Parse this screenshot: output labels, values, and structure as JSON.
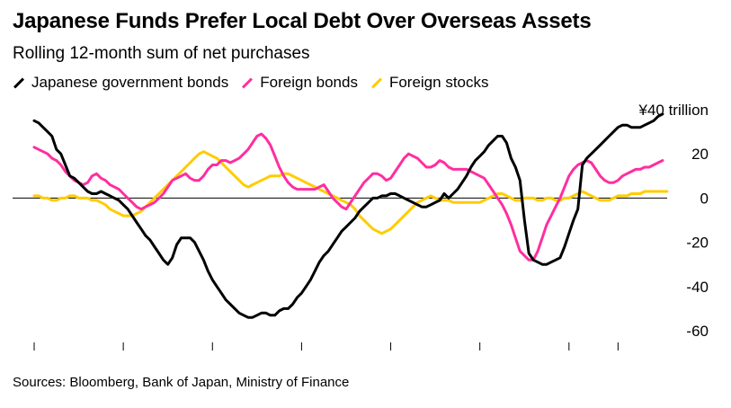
{
  "chart_data": {
    "type": "line",
    "title": "Japanese Funds Prefer Local Debt Over Overseas Assets",
    "subtitle": "Rolling 12-month sum of net purchases",
    "source": "Sources: Bloomberg, Bank of Japan, Ministry of Finance",
    "ylabel": "",
    "y_unit_label": "¥40 trillion",
    "ylim": [
      -60,
      40
    ],
    "y_ticks": [
      "¥40 trillion",
      "20",
      "0",
      "-20",
      "-40",
      "-60"
    ],
    "xlim": [
      0,
      139
    ],
    "x_ticks": [
      0,
      20,
      40,
      60,
      80,
      100,
      120,
      131
    ],
    "zero_line": true,
    "legend_position": "top-left",
    "series": [
      {
        "name": "Japanese government bonds",
        "color": "#000000",
        "values": [
          35,
          34,
          32,
          30,
          28,
          22,
          20,
          15,
          10,
          9,
          7,
          5,
          3,
          2,
          2,
          3,
          2,
          1,
          0,
          -1,
          -3,
          -5,
          -8,
          -11,
          -14,
          -17,
          -19,
          -22,
          -25,
          -28,
          -30,
          -27,
          -21,
          -18,
          -18,
          -18,
          -20,
          -24,
          -28,
          -33,
          -37,
          -40,
          -43,
          -46,
          -48,
          -50,
          -52,
          -53,
          -54,
          -54,
          -53,
          -52,
          -52,
          -53,
          -53,
          -51,
          -50,
          -50,
          -48,
          -45,
          -43,
          -40,
          -37,
          -33,
          -29,
          -26,
          -24,
          -21,
          -18,
          -15,
          -13,
          -11,
          -9,
          -6,
          -4,
          -2,
          0,
          0,
          1,
          1,
          2,
          2,
          1,
          0,
          -1,
          -2,
          -3,
          -4,
          -4,
          -3,
          -2,
          -1,
          2,
          0,
          2,
          4,
          7,
          10,
          14,
          17,
          19,
          21,
          24,
          26,
          28,
          28,
          25,
          18,
          14,
          8,
          -10,
          -25,
          -28,
          -29,
          -30,
          -30,
          -29,
          -28,
          -27,
          -22,
          -16,
          -10,
          -5,
          15,
          18,
          20,
          22,
          24,
          26,
          28,
          30,
          32,
          33,
          33,
          32,
          32,
          32,
          33,
          34,
          35,
          37,
          38
        ]
      },
      {
        "name": "Foreign bonds",
        "color": "#ff2ea0",
        "values": [
          23,
          22,
          21,
          20,
          18,
          17,
          15,
          12,
          10,
          8,
          7,
          6,
          7,
          10,
          11,
          9,
          8,
          6,
          5,
          4,
          2,
          0,
          -2,
          -4,
          -5,
          -4,
          -3,
          -2,
          0,
          2,
          5,
          8,
          9,
          10,
          11,
          9,
          8,
          8,
          10,
          13,
          15,
          15,
          17,
          17,
          16,
          17,
          18,
          20,
          22,
          25,
          28,
          29,
          27,
          24,
          19,
          14,
          10,
          7,
          5,
          4,
          4,
          4,
          4,
          4,
          5,
          6,
          3,
          0,
          -2,
          -4,
          -5,
          -2,
          1,
          4,
          7,
          9,
          11,
          11,
          10,
          8,
          9,
          12,
          15,
          18,
          20,
          19,
          18,
          16,
          14,
          14,
          15,
          17,
          16,
          14,
          13,
          13,
          13,
          13,
          12,
          11,
          10,
          9,
          6,
          3,
          0,
          -3,
          -7,
          -12,
          -18,
          -24,
          -26,
          -28,
          -28,
          -24,
          -18,
          -12,
          -8,
          -4,
          0,
          5,
          10,
          13,
          15,
          16,
          17,
          16,
          13,
          10,
          8,
          7,
          7,
          8,
          10,
          11,
          12,
          13,
          13,
          14,
          14,
          15,
          16,
          17
        ]
      },
      {
        "name": "Foreign stocks",
        "color": "#ffcc00",
        "values": [
          1,
          1,
          0,
          0,
          -1,
          -1,
          0,
          0,
          1,
          1,
          0,
          0,
          0,
          -1,
          -1,
          -2,
          -3,
          -5,
          -6,
          -7,
          -8,
          -8,
          -8,
          -7,
          -6,
          -4,
          -2,
          0,
          2,
          4,
          6,
          8,
          10,
          12,
          14,
          16,
          18,
          20,
          21,
          20,
          19,
          18,
          16,
          14,
          12,
          10,
          8,
          6,
          5,
          6,
          7,
          8,
          9,
          10,
          10,
          10,
          11,
          11,
          10,
          9,
          8,
          7,
          6,
          5,
          4,
          3,
          2,
          1,
          0,
          -1,
          -2,
          -3,
          -5,
          -8,
          -10,
          -12,
          -14,
          -15,
          -16,
          -15,
          -14,
          -12,
          -10,
          -8,
          -6,
          -4,
          -2,
          -1,
          0,
          1,
          0,
          -1,
          -1,
          -1,
          -2,
          -2,
          -2,
          -2,
          -2,
          -2,
          -2,
          -1,
          0,
          1,
          2,
          2,
          1,
          0,
          -1,
          -1,
          0,
          0,
          0,
          -1,
          -1,
          0,
          0,
          -1,
          -1,
          0,
          0,
          1,
          2,
          3,
          2,
          1,
          0,
          -1,
          -1,
          -1,
          0,
          1,
          1,
          1,
          2,
          2,
          2,
          3,
          3,
          3,
          3,
          3,
          3
        ]
      }
    ]
  }
}
